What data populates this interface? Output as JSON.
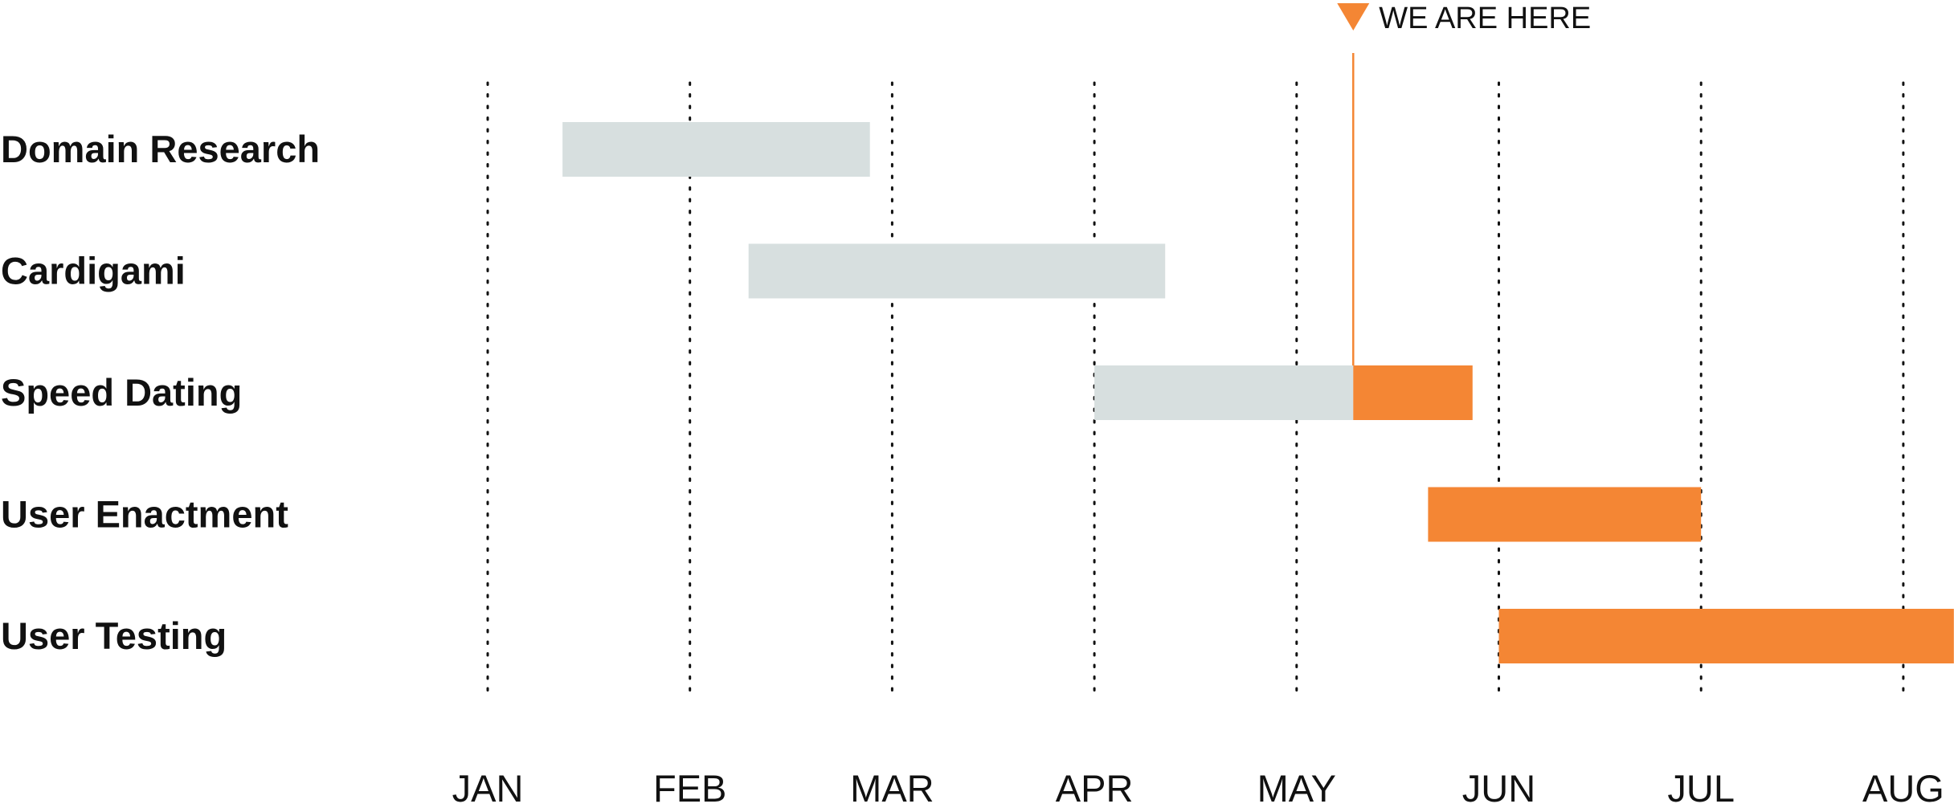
{
  "chart_data": {
    "type": "gantt",
    "title": "",
    "months": [
      "JAN",
      "FEB",
      "MAR",
      "APR",
      "MAY",
      "JUN",
      "JUL",
      "AUG"
    ],
    "tasks": [
      {
        "name": "Domain Research",
        "start": 1.37,
        "end": 2.89
      },
      {
        "name": "Cardigami",
        "start": 2.29,
        "end": 4.35
      },
      {
        "name": "Speed Dating",
        "start": 4.0,
        "end": 5.87
      },
      {
        "name": "User Enactment",
        "start": 5.65,
        "end": 7.0
      },
      {
        "name": "User Testing",
        "start": 6.0,
        "end": 8.25
      }
    ],
    "today": {
      "label": "WE ARE HERE",
      "value": 5.28
    },
    "colors": {
      "done": "#d7dfdf",
      "remaining": "#f48634",
      "marker": "#f48634",
      "gridline": "#111111",
      "text": "#111111"
    },
    "grid": "dotted vertical at each month"
  }
}
